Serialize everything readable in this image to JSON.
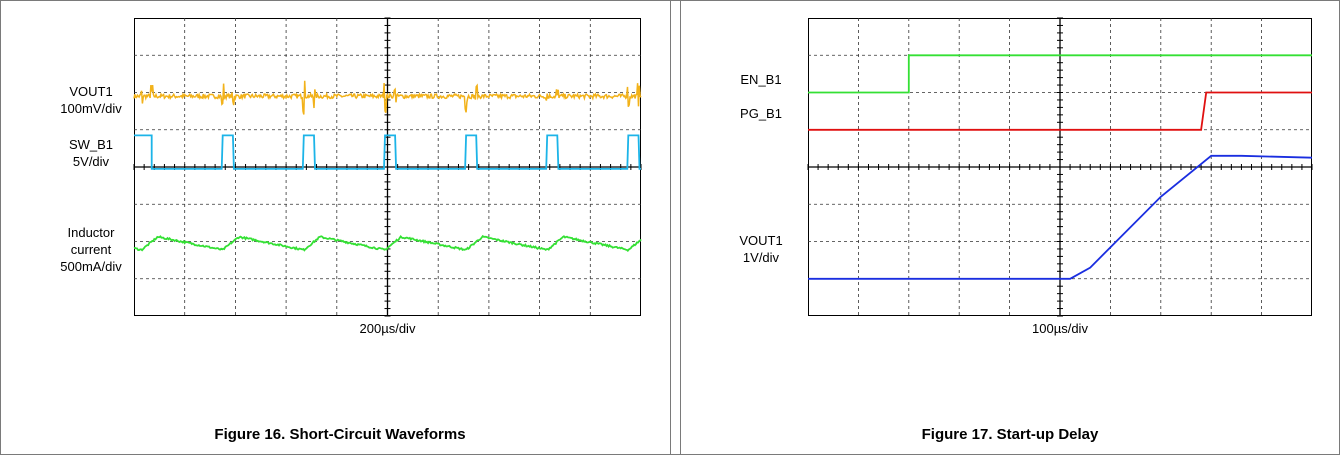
{
  "colors": {
    "yellow": "#f2b21a",
    "cyan": "#1cb4e8",
    "green": "#34e034",
    "red": "#e01010",
    "blue": "#1a2ee0",
    "grid": "#333333"
  },
  "chart_data": [
    {
      "type": "line",
      "caption": "Figure 16. Short-Circuit Waveforms",
      "xlabel": "200µs/div",
      "grid": true,
      "divisions": {
        "x": 10,
        "y": 8
      },
      "channels": [
        {
          "label_lines": [
            "VOUT1",
            "100mV/div"
          ],
          "color_key": "yellow",
          "level_div": 5.9
        },
        {
          "label_lines": [
            "SW_B1",
            "5V/div"
          ],
          "color_key": "cyan",
          "low_div": 3.95,
          "high_div": 4.85
        },
        {
          "label_lines": [
            "Inductor",
            "current",
            "500mA/div"
          ],
          "color_key": "green",
          "level_div": 1.95,
          "ripple_div": 0.35
        }
      ],
      "switching_period_div": 1.6,
      "pulse_width_div": 0.2
    },
    {
      "type": "line",
      "caption": "Figure 17. Start-up Delay",
      "xlabel": "100µs/div",
      "grid": true,
      "divisions": {
        "x": 10,
        "y": 8
      },
      "channels": [
        {
          "label_lines": [
            "EN_B1"
          ],
          "color_key": "green",
          "x_div": [
            0,
            2,
            2,
            10
          ],
          "y_div": [
            6,
            6,
            7,
            7
          ]
        },
        {
          "label_lines": [
            "PG_B1"
          ],
          "color_key": "red",
          "x_div": [
            0,
            7.8,
            7.9,
            10
          ],
          "y_div": [
            5,
            5,
            6,
            6
          ]
        },
        {
          "label_lines": [
            "VOUT1",
            "1V/div"
          ],
          "color_key": "blue",
          "x_div": [
            0,
            5.2,
            5.6,
            7.0,
            8.0,
            8.6,
            10
          ],
          "y_div": [
            1,
            1,
            1.3,
            3.2,
            4.3,
            4.3,
            4.25
          ]
        }
      ]
    }
  ]
}
